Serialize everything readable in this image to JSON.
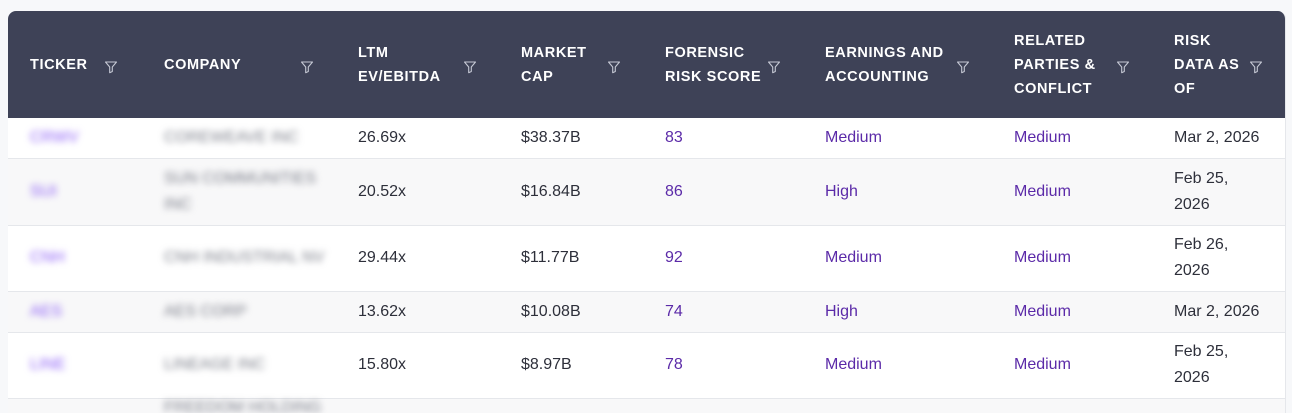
{
  "columns": [
    {
      "label": "TICKER",
      "filter_icon": "filter-icon"
    },
    {
      "label": "COMPANY",
      "filter_icon": "filter-icon"
    },
    {
      "label": "LTM EV/EBITDA",
      "filter_icon": "filter-icon"
    },
    {
      "label": "MARKET CAP",
      "filter_icon": "filter-icon"
    },
    {
      "label": "FORENSIC RISK SCORE",
      "filter_icon": "filter-icon"
    },
    {
      "label": "EARNINGS AND ACCOUNTING",
      "filter_icon": "filter-icon"
    },
    {
      "label": "RELATED PARTIES & CONFLICT",
      "filter_icon": "filter-icon"
    },
    {
      "label": "RISK DATA AS OF",
      "filter_icon": "filter-icon"
    }
  ],
  "rows": [
    {
      "ticker": "CRWV",
      "company": "COREWEAVE INC",
      "ev_ebitda": "26.69x",
      "market_cap": "$38.37B",
      "score": "83",
      "earnings": "Medium",
      "related": "Medium",
      "date": "Mar 2, 2026"
    },
    {
      "ticker": "SUI",
      "company": "SUN COMMUNITIES INC",
      "ev_ebitda": "20.52x",
      "market_cap": "$16.84B",
      "score": "86",
      "earnings": "High",
      "related": "Medium",
      "date": "Feb 25, 2026"
    },
    {
      "ticker": "CNH",
      "company": "CNH INDUSTRIAL NV",
      "ev_ebitda": "29.44x",
      "market_cap": "$11.77B",
      "score": "92",
      "earnings": "Medium",
      "related": "Medium",
      "date": "Feb 26, 2026"
    },
    {
      "ticker": "AES",
      "company": "AES CORP",
      "ev_ebitda": "13.62x",
      "market_cap": "$10.08B",
      "score": "74",
      "earnings": "High",
      "related": "Medium",
      "date": "Mar 2, 2026"
    },
    {
      "ticker": "LINE",
      "company": "LINEAGE INC",
      "ev_ebitda": "15.80x",
      "market_cap": "$8.97B",
      "score": "78",
      "earnings": "Medium",
      "related": "Medium",
      "date": "Feb 25, 2026"
    },
    {
      "company": "FREEDOM HOLDING"
    }
  ],
  "colors": {
    "header_bg": "#3e4257",
    "accent": "#5b2aa8",
    "row_alt": "#f8f8f9"
  }
}
